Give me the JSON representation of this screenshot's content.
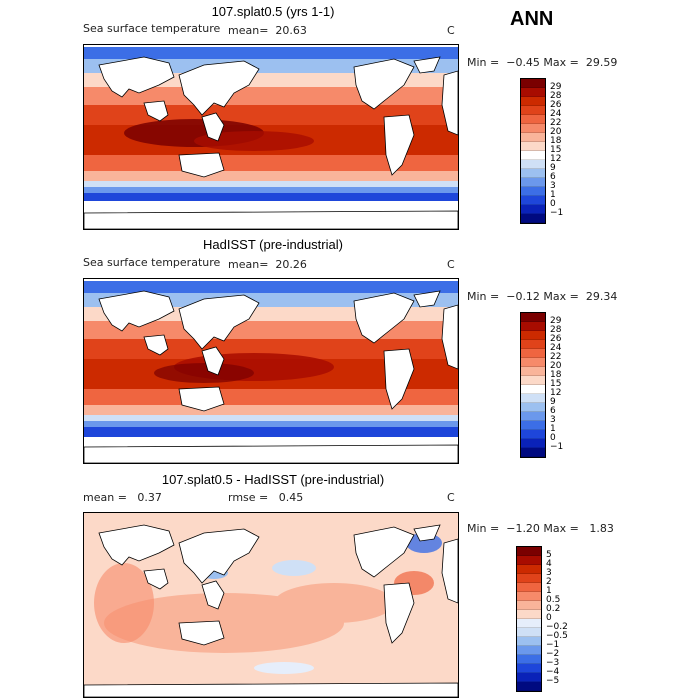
{
  "season": "ANN",
  "unit": "C",
  "panels": [
    {
      "title": "107.splat0.5 (yrs 1-1)",
      "left_label": "Sea surface temperature",
      "mean_text": "mean=  20.63",
      "unit": "C",
      "minmax": "Min =  −0.45 Max =  29.59",
      "kind": "abs"
    },
    {
      "title": "HadISST (pre-industrial)",
      "left_label": "Sea surface temperature",
      "mean_text": "mean=  20.26",
      "unit": "C",
      "minmax": "Min =  −0.12 Max =  29.34",
      "kind": "abs"
    },
    {
      "title": "107.splat0.5 - HadISST (pre-industrial)",
      "left_label": "mean =   0.37",
      "mean_text": "rmse =   0.45",
      "unit": "C",
      "minmax": "Min =  −1.20 Max =   1.83",
      "kind": "diff"
    }
  ],
  "abs_colorbar": {
    "labels": [
      "29",
      "28",
      "26",
      "24",
      "22",
      "20",
      "18",
      "15",
      "12",
      "9",
      "6",
      "3",
      "1",
      "0",
      "−1"
    ],
    "colors": [
      "#7a0000",
      "#a80c00",
      "#cc2a00",
      "#e0431a",
      "#ef6540",
      "#f68a6a",
      "#f9b49a",
      "#fcd9c8",
      "#ffffff",
      "#cfe0f6",
      "#9cc0f0",
      "#6b98ec",
      "#3c6ee6",
      "#1e46da",
      "#0a22b8",
      "#000a80"
    ]
  },
  "diff_colorbar": {
    "labels": [
      "5",
      "4",
      "3",
      "2",
      "1",
      "0.5",
      "0.2",
      "0",
      "−0.2",
      "−0.5",
      "−1",
      "−2",
      "−3",
      "−4",
      "−5"
    ],
    "colors": [
      "#7a0000",
      "#a80c00",
      "#cc2a00",
      "#e0431a",
      "#ef6540",
      "#f68a6a",
      "#f9b49a",
      "#fcd9c8",
      "#e6eefb",
      "#cfe0f6",
      "#9cc0f0",
      "#6b98ec",
      "#3c6ee6",
      "#1e46da",
      "#0a22b8",
      "#000a80"
    ]
  }
}
